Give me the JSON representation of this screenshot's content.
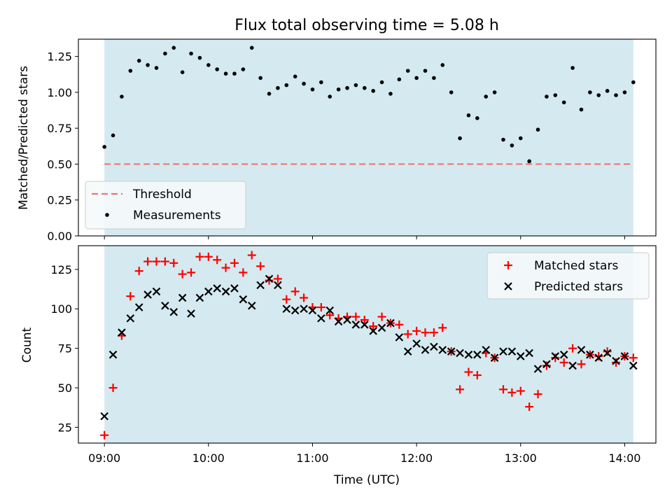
{
  "chart_data": [
    {
      "type": "scatter",
      "title": "Flux total observing time = 5.08 h",
      "xlabel": "",
      "ylabel": "Matched/Predicted stars",
      "xlim": [
        "08:45",
        "14:18"
      ],
      "ylim": [
        0,
        1.37
      ],
      "yticks": [
        "0.00",
        "0.25",
        "0.50",
        "0.75",
        "1.00",
        "1.25"
      ],
      "observing_window": [
        "09:00",
        "14:05"
      ],
      "observing_window_color": "#d4eaf0",
      "threshold": 0.5,
      "legend_position": "lower left",
      "legend": [
        {
          "label": "Threshold",
          "marker": "dashed-line",
          "color": "#f07474"
        },
        {
          "label": "Measurements",
          "marker": "dot",
          "color": "#000000"
        }
      ],
      "series": [
        {
          "name": "Measurements",
          "color": "#000000",
          "x": [
            "09:00",
            "09:05",
            "09:10",
            "09:15",
            "09:20",
            "09:25",
            "09:30",
            "09:35",
            "09:40",
            "09:45",
            "09:50",
            "09:55",
            "10:00",
            "10:05",
            "10:10",
            "10:15",
            "10:20",
            "10:25",
            "10:30",
            "10:35",
            "10:40",
            "10:45",
            "10:50",
            "10:55",
            "11:00",
            "11:05",
            "11:10",
            "11:15",
            "11:20",
            "11:25",
            "11:30",
            "11:35",
            "11:40",
            "11:45",
            "11:50",
            "11:55",
            "12:00",
            "12:05",
            "12:10",
            "12:15",
            "12:20",
            "12:25",
            "12:30",
            "12:35",
            "12:40",
            "12:45",
            "12:50",
            "12:55",
            "13:00",
            "13:05",
            "13:10",
            "13:15",
            "13:20",
            "13:25",
            "13:30",
            "13:35",
            "13:40",
            "13:45",
            "13:50",
            "13:55",
            "14:00",
            "14:05"
          ],
          "y": [
            0.62,
            0.7,
            0.97,
            1.15,
            1.22,
            1.19,
            1.17,
            1.27,
            1.31,
            1.14,
            1.27,
            1.24,
            1.19,
            1.16,
            1.13,
            1.13,
            1.16,
            1.31,
            1.1,
            0.99,
            1.03,
            1.05,
            1.11,
            1.06,
            1.02,
            1.07,
            0.97,
            1.02,
            1.03,
            1.05,
            1.03,
            1.01,
            1.07,
            0.99,
            1.09,
            1.15,
            1.1,
            1.15,
            1.1,
            1.19,
            1.0,
            0.68,
            0.84,
            0.82,
            0.97,
            1.0,
            0.67,
            0.63,
            0.68,
            0.52,
            0.74,
            0.97,
            0.98,
            0.93,
            1.17,
            0.88,
            1.0,
            0.98,
            1.01,
            0.98,
            1.0,
            1.07
          ]
        }
      ]
    },
    {
      "type": "scatter",
      "title": "",
      "xlabel": "Time (UTC)",
      "ylabel": "Count",
      "xlim": [
        "08:45",
        "14:18"
      ],
      "ylim": [
        15,
        140
      ],
      "xticks": [
        "09:00",
        "10:00",
        "11:00",
        "12:00",
        "13:00",
        "14:00"
      ],
      "yticks": [
        "25",
        "50",
        "75",
        "100",
        "125"
      ],
      "observing_window": [
        "09:00",
        "14:05"
      ],
      "observing_window_color": "#d4eaf0",
      "legend_position": "upper right",
      "legend": [
        {
          "label": "Matched stars",
          "marker": "plus",
          "color": "#ff0000"
        },
        {
          "label": "Predicted stars",
          "marker": "x",
          "color": "#000000"
        }
      ],
      "series": [
        {
          "name": "Matched stars",
          "color": "#ff0000",
          "x": [
            "09:00",
            "09:05",
            "09:10",
            "09:15",
            "09:20",
            "09:25",
            "09:30",
            "09:35",
            "09:40",
            "09:45",
            "09:50",
            "09:55",
            "10:00",
            "10:05",
            "10:10",
            "10:15",
            "10:20",
            "10:25",
            "10:30",
            "10:35",
            "10:40",
            "10:45",
            "10:50",
            "10:55",
            "11:00",
            "11:05",
            "11:10",
            "11:15",
            "11:20",
            "11:25",
            "11:30",
            "11:35",
            "11:40",
            "11:45",
            "11:50",
            "11:55",
            "12:00",
            "12:05",
            "12:10",
            "12:15",
            "12:20",
            "12:25",
            "12:30",
            "12:35",
            "12:40",
            "12:45",
            "12:50",
            "12:55",
            "13:00",
            "13:05",
            "13:10",
            "13:15",
            "13:20",
            "13:25",
            "13:30",
            "13:35",
            "13:40",
            "13:45",
            "13:50",
            "13:55",
            "14:00",
            "14:05"
          ],
          "y": [
            20,
            50,
            83,
            108,
            124,
            130,
            130,
            130,
            129,
            122,
            123,
            133,
            133,
            131,
            126,
            129,
            123,
            134,
            127,
            118,
            119,
            106,
            111,
            107,
            101,
            101,
            96,
            94,
            95,
            95,
            93,
            89,
            95,
            91,
            90,
            84,
            86,
            85,
            85,
            88,
            73,
            49,
            60,
            58,
            72,
            69,
            49,
            47,
            48,
            38,
            46,
            64,
            69,
            66,
            75,
            65,
            71,
            70,
            73,
            66,
            70,
            69
          ]
        },
        {
          "name": "Predicted stars",
          "color": "#000000",
          "x": [
            "09:00",
            "09:05",
            "09:10",
            "09:15",
            "09:20",
            "09:25",
            "09:30",
            "09:35",
            "09:40",
            "09:45",
            "09:50",
            "09:55",
            "10:00",
            "10:05",
            "10:10",
            "10:15",
            "10:20",
            "10:25",
            "10:30",
            "10:35",
            "10:40",
            "10:45",
            "10:50",
            "10:55",
            "11:00",
            "11:05",
            "11:10",
            "11:15",
            "11:20",
            "11:25",
            "11:30",
            "11:35",
            "11:40",
            "11:45",
            "11:50",
            "11:55",
            "12:00",
            "12:05",
            "12:10",
            "12:15",
            "12:20",
            "12:25",
            "12:30",
            "12:35",
            "12:40",
            "12:45",
            "12:50",
            "12:55",
            "13:00",
            "13:05",
            "13:10",
            "13:15",
            "13:20",
            "13:25",
            "13:30",
            "13:35",
            "13:40",
            "13:45",
            "13:50",
            "13:55",
            "14:00",
            "14:05"
          ],
          "y": [
            32,
            71,
            85,
            94,
            101,
            109,
            111,
            102,
            98,
            107,
            97,
            107,
            111,
            113,
            111,
            113,
            106,
            102,
            115,
            119,
            115,
            100,
            99,
            100,
            99,
            94,
            99,
            92,
            93,
            90,
            90,
            86,
            88,
            91,
            82,
            73,
            78,
            74,
            76,
            74,
            73,
            72,
            71,
            71,
            74,
            69,
            73,
            73,
            70,
            72,
            62,
            65,
            70,
            71,
            64,
            74,
            71,
            69,
            72,
            67,
            70,
            64
          ]
        }
      ]
    }
  ]
}
